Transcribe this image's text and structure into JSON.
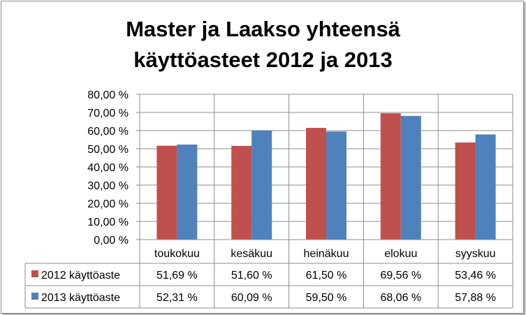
{
  "chart_data": {
    "type": "bar",
    "title_line1": "Master ja Laakso yhteensä",
    "title_line2": "käyttöasteet 2012 ja 2013",
    "categories": [
      "toukokuu",
      "kesäkuu",
      "heinäkuu",
      "elokuu",
      "syyskuu"
    ],
    "ylim": [
      0,
      80
    ],
    "yticks": [
      "80,00 %",
      "70,00 %",
      "60,00 %",
      "50,00 %",
      "40,00 %",
      "30,00 %",
      "20,00 %",
      "10,00 %",
      "0,00 %"
    ],
    "grid": true,
    "legend": "data-table",
    "series": [
      {
        "name": "2012 käyttöaste",
        "color": "#c0504d",
        "values": [
          51.69,
          51.6,
          61.5,
          69.56,
          53.46
        ],
        "labels": [
          "51,69 %",
          "51,60 %",
          "61,50 %",
          "69,56 %",
          "53,46 %"
        ]
      },
      {
        "name": "2013 käyttöaste",
        "color": "#4f81bd",
        "values": [
          52.31,
          60.09,
          59.5,
          68.06,
          57.88
        ],
        "labels": [
          "52,31 %",
          "60,09 %",
          "59,50 %",
          "68,06 %",
          "57,88 %"
        ]
      }
    ]
  }
}
